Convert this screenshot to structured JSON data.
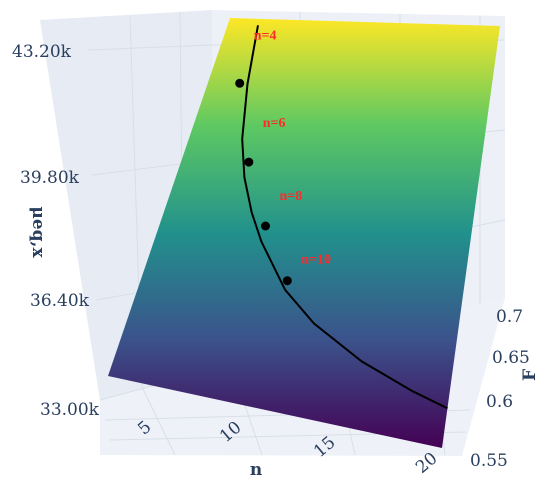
{
  "chart_data": {
    "type": "surface",
    "title": "",
    "xlabel": "n",
    "ylabel": "F",
    "zlabel": "μeq,x",
    "x_ticks": [
      "5",
      "10",
      "15",
      "20"
    ],
    "y_ticks": [
      "0.55",
      "0.6",
      "0.65",
      "0.7"
    ],
    "z_ticks": [
      "33.00k",
      "36.40k",
      "39.80k",
      "43.20k"
    ],
    "xlim": [
      2,
      20
    ],
    "ylim": [
      0.55,
      0.72
    ],
    "zlim": [
      33000,
      43200
    ],
    "colorscale": [
      "#440154",
      "#3b528b",
      "#21918c",
      "#5ec962",
      "#fde725"
    ],
    "curve": {
      "color": "#000000",
      "points": [
        {
          "n": 4.0,
          "F": 0.717,
          "mu": 42900
        },
        {
          "n": 4.5,
          "F": 0.69,
          "mu": 40300
        },
        {
          "n": 5.2,
          "F": 0.665,
          "mu": 38500
        },
        {
          "n": 6.0,
          "F": 0.648,
          "mu": 37400
        },
        {
          "n": 7.0,
          "F": 0.633,
          "mu": 36600
        },
        {
          "n": 8.0,
          "F": 0.621,
          "mu": 36000
        },
        {
          "n": 10.0,
          "F": 0.602,
          "mu": 35200
        },
        {
          "n": 12.0,
          "F": 0.59,
          "mu": 34700
        },
        {
          "n": 15.0,
          "F": 0.578,
          "mu": 34200
        },
        {
          "n": 18.0,
          "F": 0.57,
          "mu": 33900
        },
        {
          "n": 20.0,
          "F": 0.566,
          "mu": 33750
        }
      ]
    },
    "markers": [
      {
        "label": "n=4",
        "n": 4.0,
        "F": 0.69,
        "mu": 38800
      },
      {
        "label": "n=6",
        "n": 6.0,
        "F": 0.655,
        "mu": 37300
      },
      {
        "label": "n=8",
        "n": 8.0,
        "F": 0.628,
        "mu": 36300
      },
      {
        "label": "n=10",
        "n": 10.0,
        "F": 0.606,
        "mu": 35500
      }
    ]
  }
}
